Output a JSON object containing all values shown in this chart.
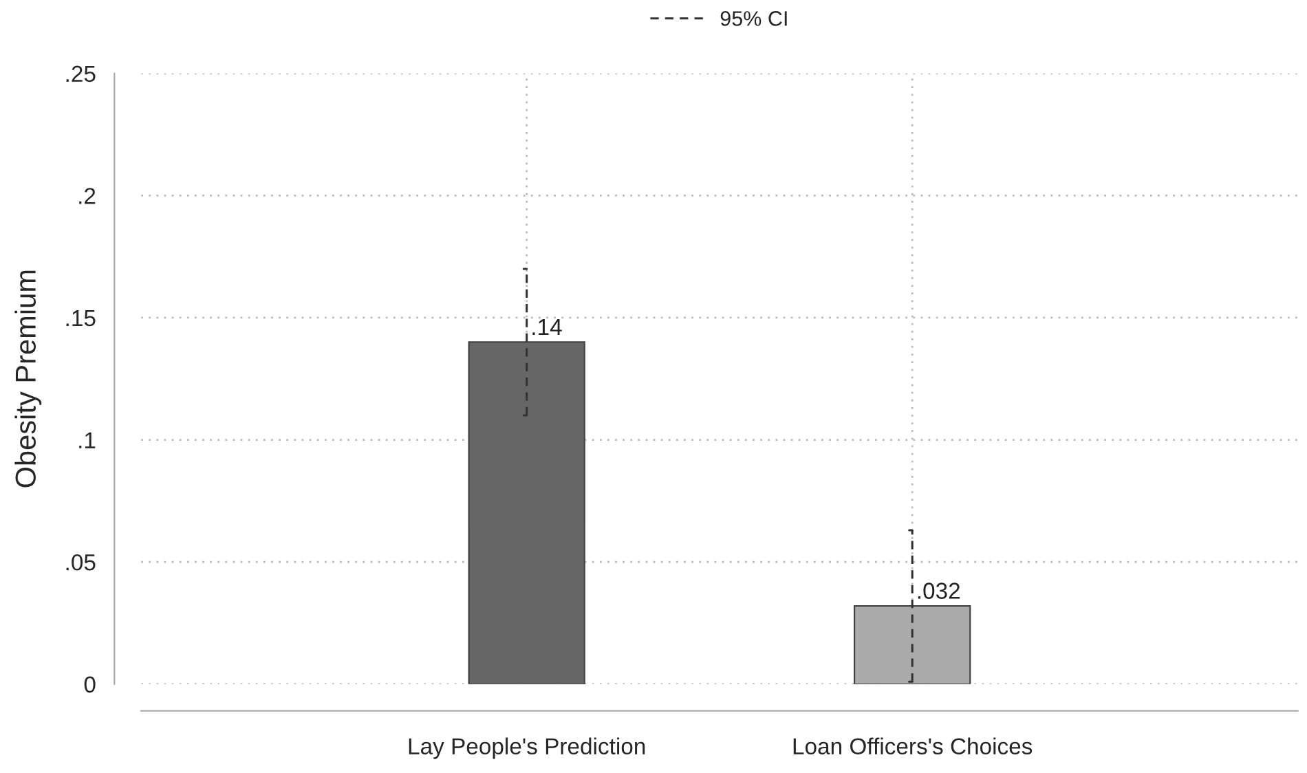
{
  "chart_data": {
    "type": "bar",
    "ylabel": "Obesity Premium",
    "legend_title": "95% CI",
    "categories": [
      "Lay People's Prediction",
      "Loan Officers's Choices"
    ],
    "values": [
      0.14,
      0.032
    ],
    "value_labels": [
      ".14",
      ".032"
    ],
    "colors": [
      "#666666",
      "#aaaaaa"
    ],
    "errors": [
      [
        0.11,
        0.17
      ],
      [
        0.001,
        0.063
      ]
    ],
    "ylim": [
      0,
      0.25
    ],
    "yticks": [
      0,
      {
        "value": 0.05,
        "label": ".05"
      },
      {
        "value": 0.1,
        "label": ".1"
      },
      {
        "value": 0.15,
        "label": ".15"
      },
      {
        "value": 0.2,
        "label": ".2"
      },
      {
        "value": 0.25,
        "label": ".25"
      }
    ],
    "grid": true
  }
}
